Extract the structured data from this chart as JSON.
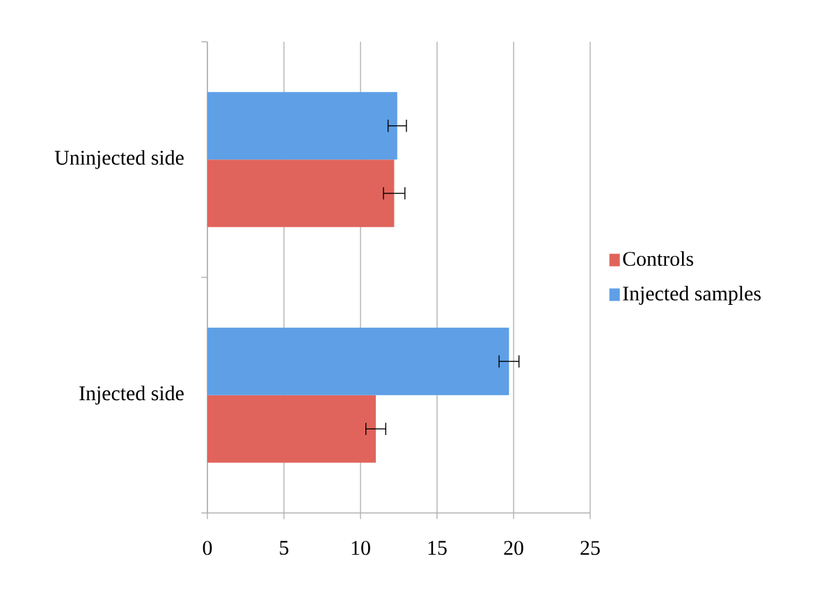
{
  "chart_data": {
    "type": "bar",
    "orientation": "horizontal",
    "categories": [
      "Uninjected side",
      "Injected side"
    ],
    "series": [
      {
        "name": "Controls",
        "color": "#e0645c",
        "values": [
          12.2,
          11.0
        ],
        "errors": [
          0.7,
          0.65
        ]
      },
      {
        "name": "Injected samples",
        "color": "#5e9fe6",
        "values": [
          12.4,
          19.7
        ],
        "errors": [
          0.6,
          0.65
        ]
      }
    ],
    "xlim": [
      0,
      25
    ],
    "xticks": [
      0,
      5,
      10,
      15,
      20,
      25
    ],
    "grid": "x",
    "legend": "right"
  }
}
